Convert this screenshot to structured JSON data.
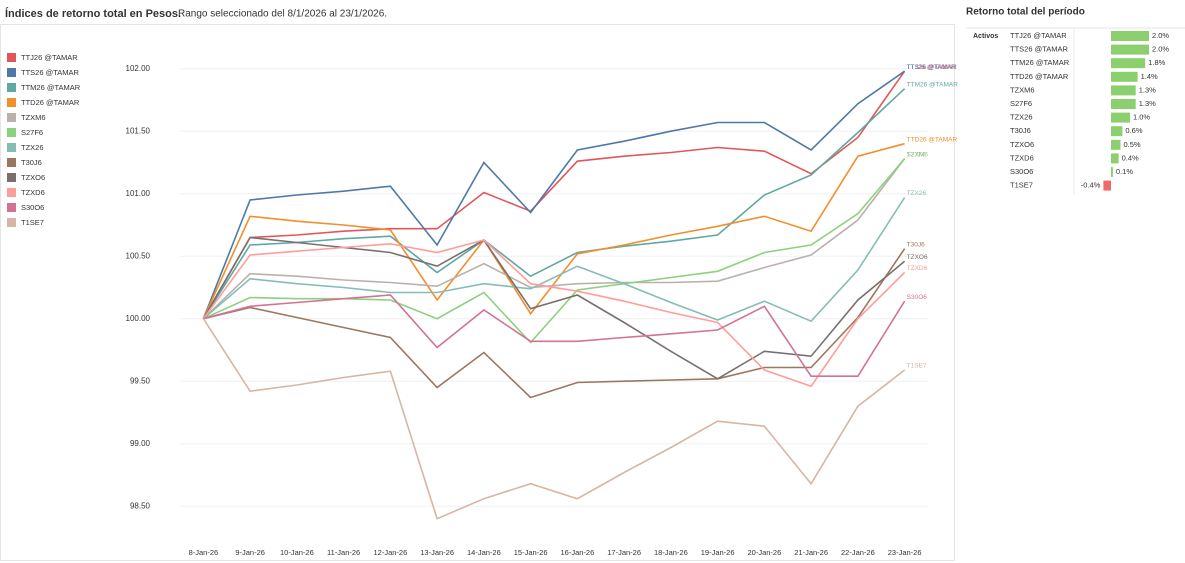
{
  "chart_data": [
    {
      "type": "line",
      "title": "Índices de retorno total en Pesos.",
      "subtitle": "Rango seleccionado del 8/1/2026 al 23/1/2026.",
      "categories": [
        "8-Jan-26",
        "9-Jan-26",
        "10-Jan-26",
        "11-Jan-26",
        "12-Jan-26",
        "13-Jan-26",
        "14-Jan-26",
        "15-Jan-26",
        "16-Jan-26",
        "17-Jan-26",
        "18-Jan-26",
        "19-Jan-26",
        "20-Jan-26",
        "21-Jan-26",
        "22-Jan-26",
        "23-Jan-26"
      ],
      "ylim": [
        98.19,
        102.35
      ],
      "yticks": [
        {
          "value": 98.5,
          "label": "98.50"
        },
        {
          "value": 99,
          "label": "99.00"
        },
        {
          "value": 99.5,
          "label": "99.50"
        },
        {
          "value": 100,
          "label": "100.00"
        },
        {
          "value": 100.5,
          "label": "100.50"
        },
        {
          "value": 101,
          "label": "101.00"
        },
        {
          "value": 101.5,
          "label": "101.50"
        },
        {
          "value": 102,
          "label": "102.00"
        }
      ],
      "grid": true,
      "legend": "left",
      "series": [
        {
          "name": "TTJ26 @TAMAR",
          "color": "#e15759",
          "values": [
            100,
            100.65,
            100.67,
            100.7,
            100.72,
            100.72,
            101.01,
            100.86,
            101.26,
            101.3,
            101.33,
            101.37,
            101.34,
            101.16,
            101.45,
            101.98
          ]
        },
        {
          "name": "TTS26 @TAMAR",
          "color": "#4e79a7",
          "values": [
            100,
            100.95,
            100.99,
            101.02,
            101.06,
            100.59,
            101.25,
            100.85,
            101.35,
            101.42,
            101.5,
            101.57,
            101.57,
            101.35,
            101.72,
            101.98
          ]
        },
        {
          "name": "TTM26 @TAMAR",
          "color": "#5fa8a3",
          "values": [
            100,
            100.59,
            100.61,
            100.64,
            100.66,
            100.37,
            100.63,
            100.34,
            100.53,
            100.58,
            100.62,
            100.67,
            100.99,
            101.15,
            101.49,
            101.84
          ]
        },
        {
          "name": "TTD26 @TAMAR",
          "color": "#f28e2b",
          "values": [
            100,
            100.82,
            100.78,
            100.75,
            100.71,
            100.15,
            100.63,
            100.04,
            100.52,
            100.59,
            100.67,
            100.74,
            100.82,
            100.7,
            101.3,
            101.4
          ]
        },
        {
          "name": "TZXM6",
          "color": "#bab0ac",
          "values": [
            100,
            100.36,
            100.34,
            100.31,
            100.29,
            100.26,
            100.44,
            100.25,
            100.28,
            100.29,
            100.29,
            100.3,
            100.41,
            100.51,
            100.79,
            101.28
          ]
        },
        {
          "name": "S27F6",
          "color": "#8cd17d",
          "values": [
            100,
            100.17,
            100.16,
            100.16,
            100.15,
            100.0,
            100.21,
            99.81,
            100.23,
            100.28,
            100.33,
            100.38,
            100.53,
            100.59,
            100.84,
            101.28
          ]
        },
        {
          "name": "TZX26",
          "color": "#86bcb6",
          "values": [
            100,
            100.32,
            100.28,
            100.25,
            100.21,
            100.21,
            100.28,
            100.24,
            100.42,
            100.28,
            100.13,
            99.99,
            100.14,
            99.98,
            100.39,
            100.97
          ]
        },
        {
          "name": "T30J6",
          "color": "#9d7660",
          "values": [
            100,
            100.09,
            100.01,
            99.93,
            99.85,
            99.45,
            99.73,
            99.37,
            99.49,
            99.5,
            99.51,
            99.52,
            99.61,
            99.61,
            100.01,
            100.56
          ]
        },
        {
          "name": "TZXO6",
          "color": "#79706e",
          "values": [
            100,
            100.65,
            100.61,
            100.57,
            100.53,
            100.42,
            100.63,
            100.08,
            100.19,
            99.97,
            99.74,
            99.52,
            99.74,
            99.7,
            100.15,
            100.46
          ]
        },
        {
          "name": "TZXD6",
          "color": "#ff9d9a",
          "values": [
            100,
            100.51,
            100.54,
            100.57,
            100.6,
            100.53,
            100.63,
            100.28,
            100.22,
            100.14,
            100.05,
            99.97,
            99.59,
            99.46,
            100.0,
            100.37
          ]
        },
        {
          "name": "S30O6",
          "color": "#d37295",
          "values": [
            100,
            100.1,
            100.13,
            100.16,
            100.19,
            99.77,
            100.07,
            99.82,
            99.82,
            99.85,
            99.88,
            99.91,
            100.1,
            99.54,
            99.54,
            100.14
          ]
        },
        {
          "name": "T1SE7",
          "color": "#d7b5a6",
          "values": [
            100,
            99.42,
            99.47,
            99.53,
            99.58,
            98.4,
            98.56,
            98.68,
            98.56,
            98.77,
            98.97,
            99.18,
            99.14,
            98.68,
            99.3,
            99.59
          ]
        }
      ]
    },
    {
      "type": "hbar",
      "title": "Retorno total del período",
      "category_header": "Activos",
      "categories": [
        "TTJ26 @TAMAR",
        "TTS26 @TAMAR",
        "TTM26 @TAMAR",
        "TTD26 @TAMAR",
        "TZXM6",
        "S27F6",
        "TZX26",
        "T30J6",
        "TZXO6",
        "TZXD6",
        "S30O6",
        "T1SE7"
      ],
      "values": [
        2.0,
        2.0,
        1.8,
        1.4,
        1.3,
        1.3,
        1.0,
        0.6,
        0.5,
        0.4,
        0.1,
        -0.4
      ],
      "value_labels": [
        "2.0%",
        "2.0%",
        "1.8%",
        "1.4%",
        "1.3%",
        "1.3%",
        "1.0%",
        "0.6%",
        "0.5%",
        "0.4%",
        "0.1%",
        "-0.4%"
      ],
      "color": "#8ccf6e",
      "negative_color": "#f06a6a"
    }
  ]
}
